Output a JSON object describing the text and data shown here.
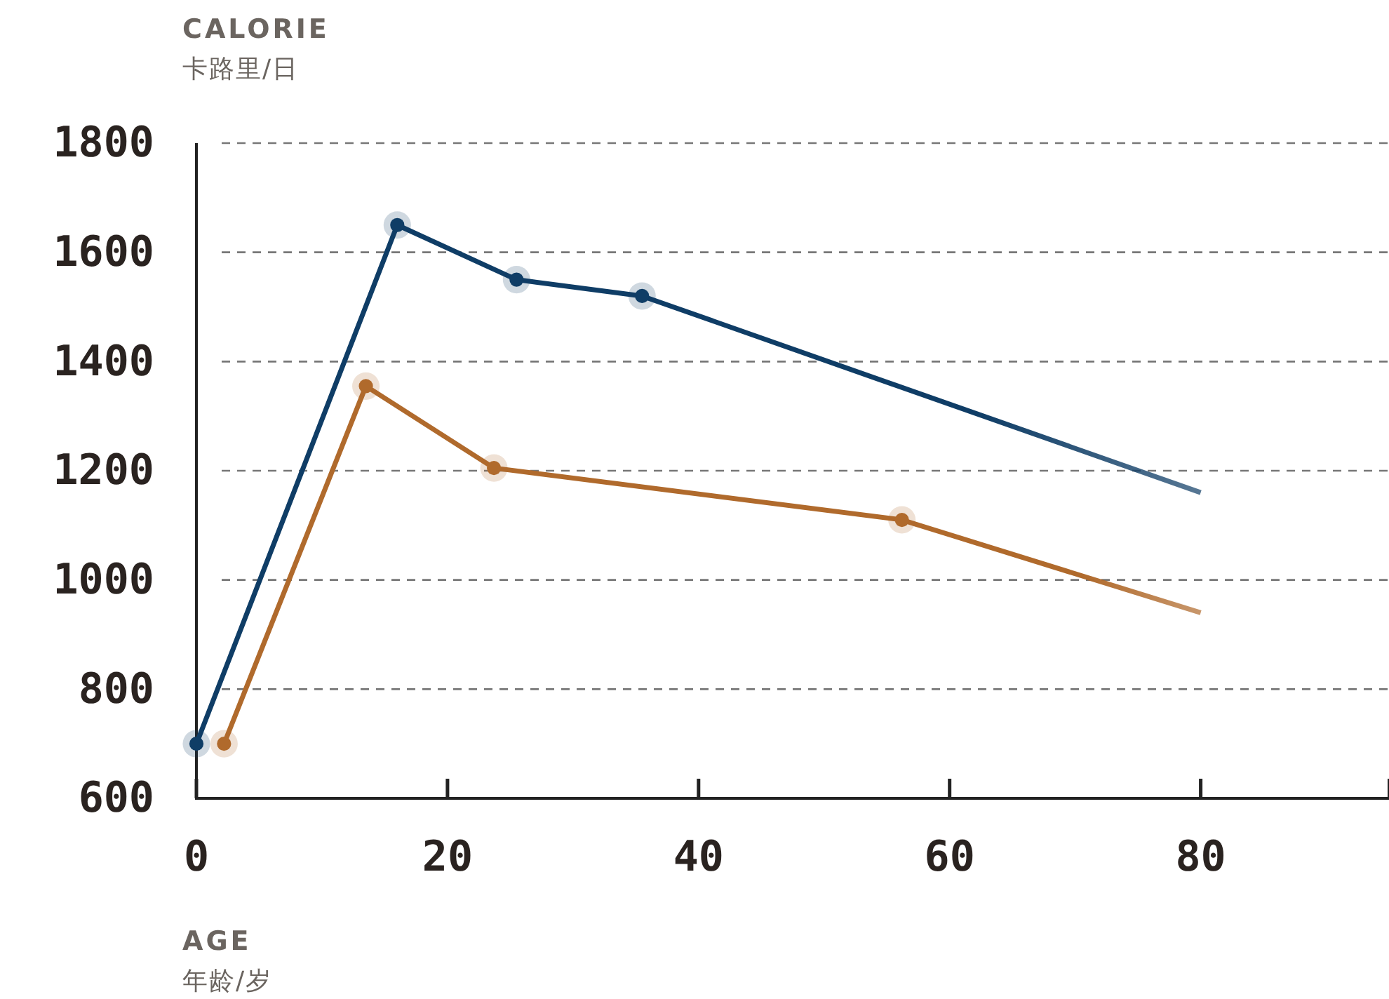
{
  "chart_data": {
    "type": "line",
    "xlabel": "AGE\n年龄/岁",
    "ylabel": "CALORIE\n卡路里/日",
    "xlim": [
      0,
      95
    ],
    "xticks": [
      0,
      20,
      40,
      60,
      80
    ],
    "ylim": [
      600,
      1800
    ],
    "yticks": [
      600,
      800,
      1000,
      1200,
      1400,
      1600,
      1800
    ],
    "grid": "y",
    "marker": "circle",
    "line_style": "solid",
    "series": [
      {
        "color": "#0f3d66",
        "x": [
          0,
          16,
          25.5,
          35.5,
          80
        ],
        "values": [
          700,
          1650,
          1550,
          1520,
          1160
        ]
      },
      {
        "color": "#b06a2c",
        "x": [
          2.2,
          13.5,
          23.7,
          56.2,
          80
        ],
        "values": [
          700,
          1355,
          1205,
          1110,
          940
        ]
      }
    ]
  }
}
